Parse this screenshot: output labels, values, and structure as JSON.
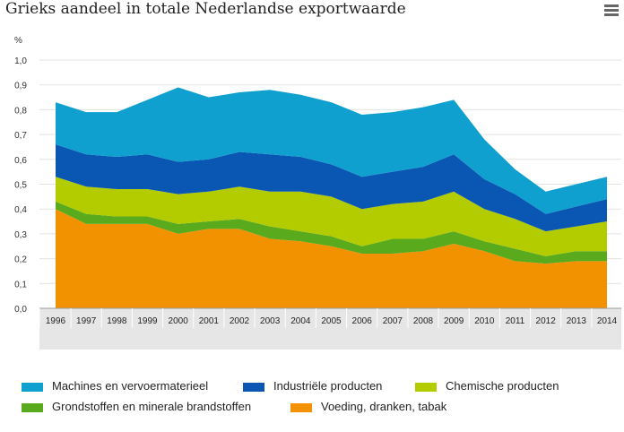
{
  "title": "Grieks aandeel in totale Nederlandse exportwaarde",
  "menu_icon": "hamburger-icon",
  "chart_data": {
    "type": "area",
    "stacked": true,
    "y_unit": "%",
    "ylim": [
      0,
      1.0
    ],
    "yticks": [
      "0,0",
      "0,1",
      "0,2",
      "0,3",
      "0,4",
      "0,5",
      "0,6",
      "0,7",
      "0,8",
      "0,9",
      "1,0"
    ],
    "grid": true,
    "legend_position": "bottom",
    "categories": [
      "1996",
      "1997",
      "1998",
      "1999",
      "2000",
      "2001",
      "2002",
      "2003",
      "2004",
      "2005",
      "2006",
      "2007",
      "2008",
      "2009",
      "2010",
      "2011",
      "2012",
      "2013",
      "2014"
    ],
    "series": [
      {
        "name": "Voeding, dranken, tabak",
        "color": "#f39200",
        "values": [
          0.4,
          0.34,
          0.34,
          0.34,
          0.3,
          0.32,
          0.32,
          0.28,
          0.27,
          0.25,
          0.22,
          0.22,
          0.23,
          0.26,
          0.23,
          0.19,
          0.18,
          0.19,
          0.19
        ]
      },
      {
        "name": "Grondstoffen en minerale brandstoffen",
        "color": "#5aaa1e",
        "values": [
          0.03,
          0.04,
          0.03,
          0.03,
          0.04,
          0.03,
          0.04,
          0.05,
          0.04,
          0.04,
          0.03,
          0.06,
          0.05,
          0.05,
          0.04,
          0.05,
          0.03,
          0.04,
          0.04
        ]
      },
      {
        "name": "Chemische producten",
        "color": "#b2cc00",
        "values": [
          0.1,
          0.11,
          0.11,
          0.11,
          0.12,
          0.12,
          0.13,
          0.14,
          0.16,
          0.16,
          0.15,
          0.14,
          0.15,
          0.16,
          0.13,
          0.12,
          0.1,
          0.1,
          0.12
        ]
      },
      {
        "name": "Industriële producten",
        "color": "#0a56b3",
        "values": [
          0.13,
          0.13,
          0.13,
          0.14,
          0.13,
          0.13,
          0.14,
          0.15,
          0.14,
          0.13,
          0.13,
          0.13,
          0.14,
          0.15,
          0.12,
          0.1,
          0.07,
          0.08,
          0.09
        ]
      },
      {
        "name": "Machines en vervoermaterieel",
        "color": "#0fa0cf",
        "values": [
          0.17,
          0.17,
          0.18,
          0.22,
          0.3,
          0.25,
          0.24,
          0.26,
          0.25,
          0.25,
          0.25,
          0.24,
          0.24,
          0.22,
          0.16,
          0.1,
          0.09,
          0.09,
          0.09
        ]
      }
    ],
    "legend_order": [
      "Machines en vervoermaterieel",
      "Industriële producten",
      "Chemische producten",
      "Grondstoffen en minerale brandstoffen",
      "Voeding, dranken, tabak"
    ]
  }
}
